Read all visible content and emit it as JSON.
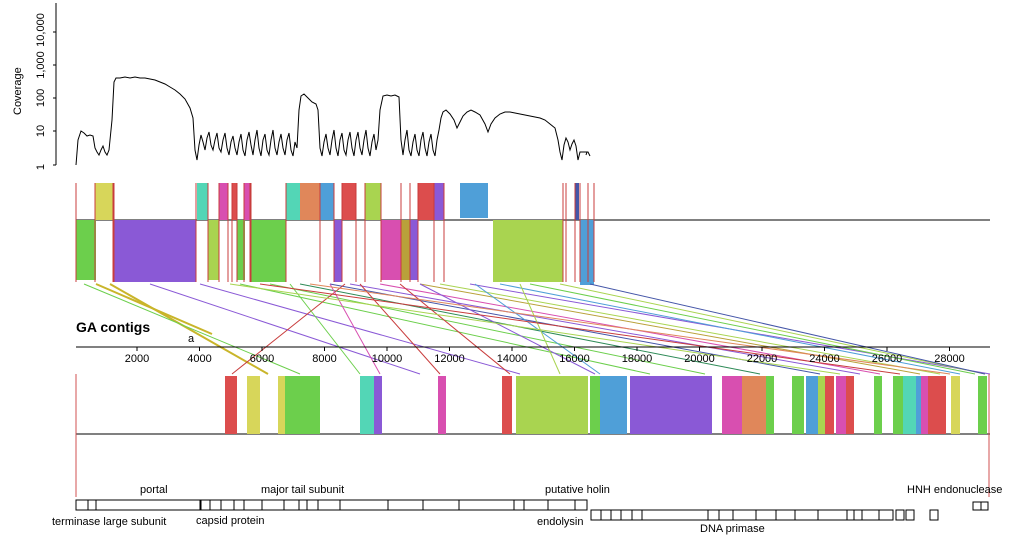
{
  "figure": {
    "coverage_axis_label": "Coverage",
    "coverage_ticks": [
      "1",
      "10",
      "100",
      "1,000",
      "10,000"
    ],
    "section_label": "GA contigs",
    "small_mark": "a",
    "genome_ticks": [
      "2000",
      "4000",
      "6000",
      "8000",
      "10000",
      "12000",
      "14000",
      "16000",
      "18000",
      "20000",
      "22000",
      "24000",
      "26000",
      "28000"
    ],
    "gene_labels_top": [
      "portal",
      "major tail subunit",
      "putative holin",
      "HNH endonuclease"
    ],
    "gene_labels_bottom": [
      "terminase large subunit",
      "capsid protein",
      "endolysin",
      "DNA primase"
    ]
  },
  "colors": {
    "green": "#6ccf4c",
    "purple": "#8a59d6",
    "lime": "#a9d450",
    "yellow": "#d7d65a",
    "teal": "#53d6b6",
    "magenta": "#d84fb0",
    "red": "#dc4d4d",
    "orange": "#e0875a",
    "blue": "#4f9fd8",
    "olive": "#b9a13a",
    "darkblue": "#4556a8"
  }
}
